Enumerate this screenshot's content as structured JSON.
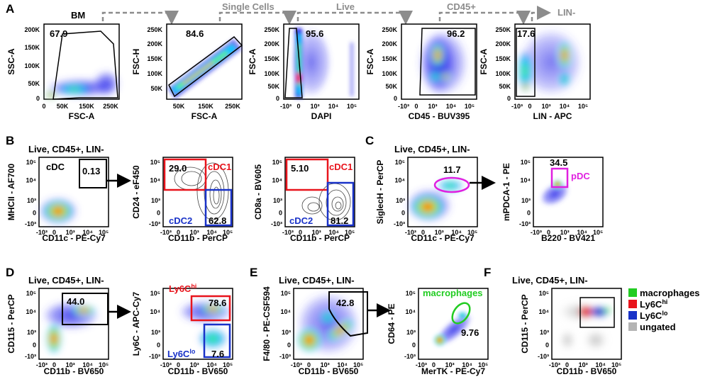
{
  "panel_labels": {
    "a": "A",
    "b": "B",
    "c": "C",
    "d": "D",
    "e": "E",
    "f": "F"
  },
  "colors": {
    "red": "#e8141c",
    "blue": "#1932c8",
    "magenta": "#e020e0",
    "green": "#22cc22",
    "gray": "#8c8c8c",
    "black": "#000000"
  },
  "row_a": {
    "bm_label": "BM",
    "flow_labels": [
      "Single Cells",
      "Live",
      "CD45+",
      "LIN-"
    ],
    "plots": [
      {
        "ylabel": "SSC-A",
        "xlabel": "FSC-A",
        "gate": "67.9",
        "yticks": [
          "200K",
          "150K",
          "100K",
          "50K",
          "0"
        ],
        "xticks": [
          "0",
          "50K",
          "150K",
          "250K"
        ]
      },
      {
        "ylabel": "FSC-H",
        "xlabel": "FSC-A",
        "gate": "84.6",
        "yticks": [
          "250K",
          "200K",
          "150K",
          "100K",
          "50K"
        ],
        "xticks": [
          "50K",
          "150K",
          "250K"
        ]
      },
      {
        "ylabel": "FSC-A",
        "xlabel": "DAPI",
        "gate": "95.6",
        "yticks": [
          "250K",
          "200K",
          "150K",
          "100K",
          "50K",
          "0"
        ],
        "xticks": [
          "-10³",
          "0",
          "10³",
          "10⁴",
          "10⁵"
        ]
      },
      {
        "ylabel": "FSC-A",
        "xlabel": "CD45 - BUV395",
        "gate": "96.2",
        "yticks": [
          "250K",
          "200K",
          "150K",
          "100K",
          "50K",
          "0"
        ],
        "xticks": [
          "-10³",
          "0",
          "10³",
          "10⁴",
          "10⁵"
        ]
      },
      {
        "ylabel": "FSC-A",
        "xlabel": "LIN - APC",
        "gate": "17.6",
        "yticks": [
          "250K",
          "200K",
          "150K",
          "100K",
          "50K",
          "0"
        ],
        "xticks": [
          "-10³",
          "0",
          "10³",
          "10⁴",
          "10⁵"
        ]
      }
    ]
  },
  "row_b": {
    "title": "Live, CD45+, LIN-",
    "plot1": {
      "ylabel": "MHCII - AF700",
      "xlabel": "CD11c - PE-Cy7",
      "gate_name": "cDC",
      "gate": "0.13"
    },
    "plot2": {
      "ylabel": "CD24 - eF450",
      "xlabel": "CD11b - PerCP",
      "cdc1": "cDC1",
      "cdc2": "cDC2",
      "v1": "29.0",
      "v2": "62.8"
    },
    "plot3": {
      "ylabel": "CD8a - BV605",
      "xlabel": "CD11b - PerCP",
      "cdc1": "cDC1",
      "cdc2": "cDC2",
      "v1": "5.10",
      "v2": "81.2"
    }
  },
  "row_c": {
    "title": "Live, CD45+, LIN-",
    "plot1": {
      "ylabel": "SiglecH - PerCP",
      "xlabel": "CD11c - PE-Cy7",
      "gate": "11.7"
    },
    "plot2": {
      "ylabel": "mPDCA-1 - PE",
      "xlabel": "B220 - BV421",
      "gate": "34.5",
      "gate_name": "pDC"
    }
  },
  "row_d": {
    "title": "Live, CD45+, LIN-",
    "plot1": {
      "ylabel": "CD115 - PerCP",
      "xlabel": "CD11b - BV650",
      "gate": "44.0"
    },
    "plot2": {
      "ylabel": "Ly6C - APC-Cy7",
      "xlabel": "CD11b - BV650",
      "hi_base": "Ly6C",
      "hi_sup": "hi",
      "lo_base": "Ly6C",
      "lo_sup": "lo",
      "v_hi": "78.6",
      "v_lo": "7.6"
    }
  },
  "row_e": {
    "title": "Live, CD45+, LIN-",
    "plot1": {
      "ylabel": "F4/80 - PE-CSF594",
      "xlabel": "CD11b - BV650",
      "gate": "42.8"
    },
    "plot2": {
      "ylabel": "CD64 - PE",
      "xlabel": "MerTK - PE-Cy7",
      "gate_name": "macrophages",
      "gate": "9.76"
    }
  },
  "row_f": {
    "title": "Live, CD45+, LIN-",
    "ylabel": "CD115 - PerCP",
    "xlabel": "CD11b - BV650",
    "legend": [
      {
        "label": "macrophages",
        "sup": "",
        "color": "#22cc22"
      },
      {
        "label": "Ly6C",
        "sup": "hi",
        "color": "#e8141c"
      },
      {
        "label": "Ly6C",
        "sup": "lo",
        "color": "#1932c8"
      },
      {
        "label": "ungated",
        "sup": "",
        "color": "#b4b4b4"
      }
    ]
  },
  "log_ticks": {
    "y": [
      "10⁵",
      "10⁴",
      "10³",
      "0",
      "-10³"
    ],
    "x": [
      "-10³",
      "0",
      "10³",
      "10⁴",
      "10⁵"
    ]
  }
}
